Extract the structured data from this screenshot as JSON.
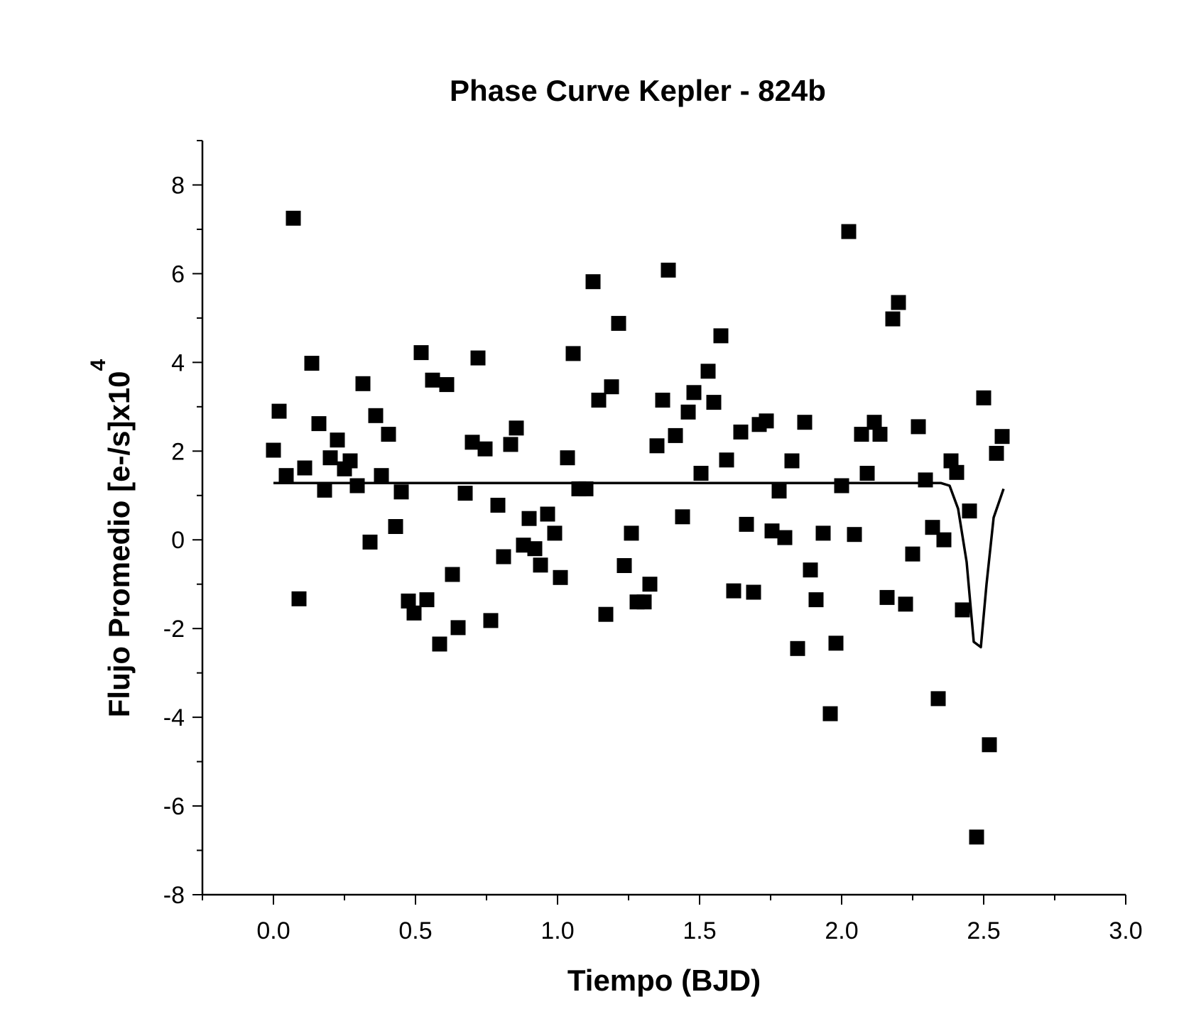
{
  "chart_data": {
    "type": "scatter",
    "title": "Phase Curve Kepler - 824b",
    "xlabel": "Tiempo (BJD)",
    "ylabel": "Flujo Promedio [e-/s]x10",
    "ylabel_exponent": "4",
    "xlim": [
      -0.25,
      3.0
    ],
    "ylim": [
      -8,
      9
    ],
    "xticks": [
      0.0,
      0.5,
      1.0,
      1.5,
      2.0,
      2.5,
      3.0
    ],
    "xtick_labels": [
      "0.0",
      "0.5",
      "1.0",
      "1.5",
      "2.0",
      "2.5",
      "3.0"
    ],
    "yticks": [
      -8,
      -6,
      -4,
      -2,
      0,
      2,
      4,
      6,
      8
    ],
    "ytick_labels": [
      "-8",
      "-6",
      "-4",
      "-2",
      "0",
      "2",
      "4",
      "6",
      "8"
    ],
    "grid": false,
    "colors": {
      "points": "#000000",
      "line": "#000000"
    },
    "series": [
      {
        "kind": "scatter",
        "points": [
          [
            0.0,
            2.02
          ],
          [
            0.02,
            2.9
          ],
          [
            0.045,
            1.45
          ],
          [
            0.07,
            7.25
          ],
          [
            0.09,
            -1.33
          ],
          [
            0.11,
            1.62
          ],
          [
            0.135,
            3.98
          ],
          [
            0.16,
            2.62
          ],
          [
            0.18,
            1.12
          ],
          [
            0.2,
            1.85
          ],
          [
            0.225,
            2.25
          ],
          [
            0.25,
            1.6
          ],
          [
            0.27,
            1.78
          ],
          [
            0.295,
            1.22
          ],
          [
            0.315,
            3.52
          ],
          [
            0.34,
            -0.05
          ],
          [
            0.36,
            2.8
          ],
          [
            0.38,
            1.45
          ],
          [
            0.405,
            2.38
          ],
          [
            0.43,
            0.3
          ],
          [
            0.45,
            1.08
          ],
          [
            0.475,
            -1.38
          ],
          [
            0.495,
            -1.65
          ],
          [
            0.52,
            4.22
          ],
          [
            0.54,
            -1.35
          ],
          [
            0.56,
            3.6
          ],
          [
            0.585,
            -2.35
          ],
          [
            0.61,
            3.5
          ],
          [
            0.63,
            -0.78
          ],
          [
            0.65,
            -1.98
          ],
          [
            0.675,
            1.05
          ],
          [
            0.7,
            2.2
          ],
          [
            0.72,
            4.1
          ],
          [
            0.745,
            2.05
          ],
          [
            0.765,
            -1.82
          ],
          [
            0.79,
            0.78
          ],
          [
            0.81,
            -0.38
          ],
          [
            0.835,
            2.15
          ],
          [
            0.855,
            2.52
          ],
          [
            0.88,
            -0.12
          ],
          [
            0.9,
            0.48
          ],
          [
            0.92,
            -0.2
          ],
          [
            0.94,
            -0.57
          ],
          [
            0.965,
            0.58
          ],
          [
            0.99,
            0.15
          ],
          [
            1.01,
            -0.85
          ],
          [
            1.035,
            1.85
          ],
          [
            1.055,
            4.2
          ],
          [
            1.075,
            1.15
          ],
          [
            1.1,
            1.15
          ],
          [
            1.125,
            5.82
          ],
          [
            1.145,
            3.15
          ],
          [
            1.17,
            -1.68
          ],
          [
            1.19,
            3.45
          ],
          [
            1.215,
            4.88
          ],
          [
            1.235,
            -0.58
          ],
          [
            1.26,
            0.15
          ],
          [
            1.28,
            -1.4
          ],
          [
            1.305,
            -1.4
          ],
          [
            1.325,
            -1.0
          ],
          [
            1.35,
            2.12
          ],
          [
            1.37,
            3.15
          ],
          [
            1.39,
            6.08
          ],
          [
            1.415,
            2.35
          ],
          [
            1.44,
            0.52
          ],
          [
            1.46,
            2.88
          ],
          [
            1.48,
            3.32
          ],
          [
            1.505,
            1.5
          ],
          [
            1.53,
            3.8
          ],
          [
            1.55,
            3.1
          ],
          [
            1.575,
            4.6
          ],
          [
            1.595,
            1.8
          ],
          [
            1.62,
            -1.15
          ],
          [
            1.645,
            2.43
          ],
          [
            1.665,
            0.35
          ],
          [
            1.69,
            -1.18
          ],
          [
            1.71,
            2.6
          ],
          [
            1.735,
            2.68
          ],
          [
            1.755,
            0.2
          ],
          [
            1.78,
            1.1
          ],
          [
            1.8,
            0.05
          ],
          [
            1.825,
            1.78
          ],
          [
            1.845,
            -2.45
          ],
          [
            1.87,
            2.65
          ],
          [
            1.89,
            -0.68
          ],
          [
            1.91,
            -1.35
          ],
          [
            1.935,
            0.15
          ],
          [
            1.96,
            -3.92
          ],
          [
            1.98,
            -2.33
          ],
          [
            2.0,
            1.22
          ],
          [
            2.025,
            6.95
          ],
          [
            2.045,
            0.12
          ],
          [
            2.07,
            2.38
          ],
          [
            2.09,
            1.5
          ],
          [
            2.115,
            2.65
          ],
          [
            2.135,
            2.38
          ],
          [
            2.16,
            -1.3
          ],
          [
            2.18,
            4.98
          ],
          [
            2.2,
            5.35
          ],
          [
            2.225,
            -1.45
          ],
          [
            2.25,
            -0.32
          ],
          [
            2.27,
            2.55
          ],
          [
            2.295,
            1.35
          ],
          [
            2.32,
            0.28
          ],
          [
            2.34,
            -3.58
          ],
          [
            2.36,
            0.0
          ],
          [
            2.385,
            1.78
          ],
          [
            2.405,
            1.52
          ],
          [
            2.425,
            -1.58
          ],
          [
            2.45,
            0.65
          ],
          [
            2.475,
            -6.7
          ],
          [
            2.5,
            3.2
          ],
          [
            2.52,
            -4.62
          ],
          [
            2.545,
            1.95
          ],
          [
            2.565,
            2.33
          ]
        ]
      },
      {
        "kind": "line",
        "points": [
          [
            0.0,
            1.28
          ],
          [
            2.35,
            1.28
          ],
          [
            2.38,
            1.22
          ],
          [
            2.41,
            0.7
          ],
          [
            2.44,
            -0.5
          ],
          [
            2.465,
            -2.3
          ],
          [
            2.49,
            -2.42
          ],
          [
            2.51,
            -1.0
          ],
          [
            2.535,
            0.5
          ],
          [
            2.57,
            1.15
          ]
        ]
      }
    ]
  }
}
